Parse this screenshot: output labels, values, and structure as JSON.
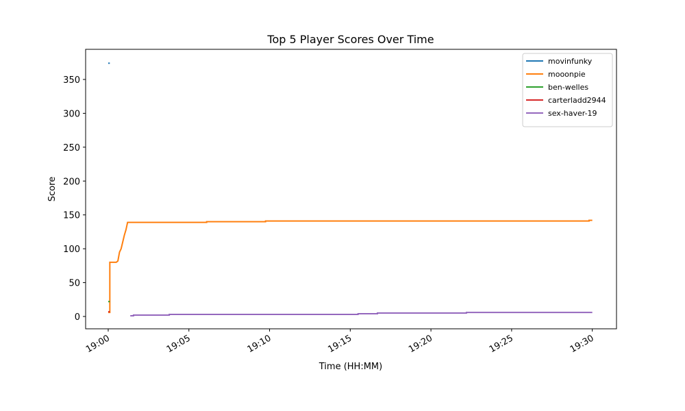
{
  "chart_data": {
    "type": "line",
    "title": "Top 5 Player Scores Over Time",
    "x_label": "Time (HH:MM)",
    "y_label": "Score",
    "xlim": [
      "18:58:36",
      "19:31:30"
    ],
    "xticks": [
      "19:00",
      "19:05",
      "19:10",
      "19:15",
      "19:20",
      "19:25",
      "19:30"
    ],
    "ylim": [
      -18.2,
      394.5
    ],
    "yticks": [
      0,
      50,
      100,
      150,
      200,
      250,
      300,
      350
    ],
    "legend": "upper right",
    "series": [
      {
        "name": "movinfunky",
        "color": "#1f77b4",
        "x": [
          "19:00:00",
          "19:00:06"
        ],
        "values": [
          374,
          374
        ]
      },
      {
        "name": "mooonpie",
        "color": "#ff7f0e",
        "x": [
          "19:00:00",
          "19:00:06",
          "19:00:06",
          "19:00:30",
          "19:00:36",
          "19:00:42",
          "19:00:48",
          "19:00:54",
          "19:01:00",
          "19:01:06",
          "19:01:12",
          "19:06:06",
          "19:06:06",
          "19:09:45",
          "19:09:45",
          "19:29:48",
          "19:29:48",
          "19:30:00"
        ],
        "values": [
          6,
          6,
          80,
          80,
          82,
          95,
          100,
          110,
          120,
          128,
          139,
          139,
          140,
          140,
          141,
          141,
          142,
          142
        ]
      },
      {
        "name": "ben-welles",
        "color": "#2ca02c",
        "x": [
          "19:00:00",
          "19:00:06"
        ],
        "values": [
          22,
          22
        ]
      },
      {
        "name": "carterladd2944",
        "color": "#d62728",
        "x": [
          "19:00:00",
          "19:00:06"
        ],
        "values": [
          7,
          7
        ]
      },
      {
        "name": "sex-haver-19",
        "color": "#9467bd",
        "x": [
          "19:01:22",
          "19:01:34",
          "19:01:34",
          "19:03:47",
          "19:03:47",
          "19:15:29",
          "19:15:29",
          "19:16:41",
          "19:16:41",
          "19:22:12",
          "19:22:12",
          "19:30:00"
        ],
        "values": [
          1,
          1,
          2,
          2,
          3,
          3,
          4,
          4,
          5,
          5,
          6,
          6
        ]
      }
    ]
  }
}
